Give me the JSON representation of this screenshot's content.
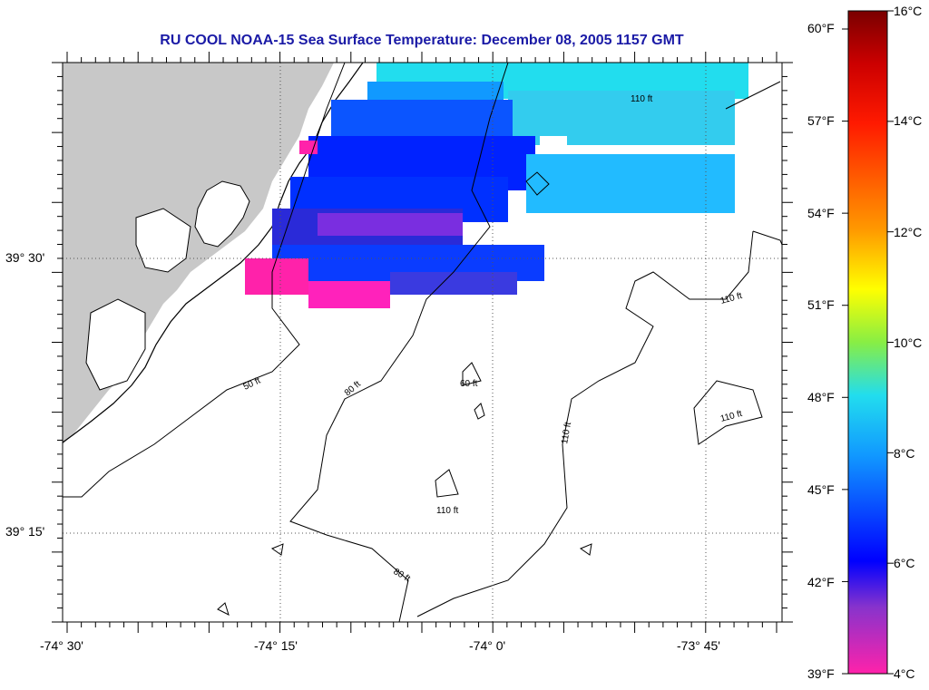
{
  "title": "RU COOL  NOAA-15  Sea Surface Temperature:  December 08, 2005 1157 GMT",
  "lat_labels": [
    "39° 30'",
    "39° 15'"
  ],
  "lon_labels": [
    "-74° 30'",
    "-74° 15'",
    "-74° 0'",
    "-73° 45'"
  ],
  "contour_labels": [
    "50 ft",
    "60 ft",
    "80 ft",
    "110 ft"
  ],
  "colorbar": {
    "fahrenheit_labels": [
      "60°F",
      "57°F",
      "54°F",
      "51°F",
      "48°F",
      "45°F",
      "42°F",
      "39°F"
    ],
    "celsius_labels": [
      "16°C",
      "14°C",
      "12°C",
      "10°C",
      "8°C",
      "6°C",
      "4°C"
    ],
    "range_celsius": [
      4,
      16
    ]
  },
  "colors": {
    "land": "#c8c8c8",
    "title": "#1a1aa6",
    "sst_cold": "#ff22aa",
    "sst_mid": "#0022ff",
    "sst_warm": "#22ddee"
  }
}
